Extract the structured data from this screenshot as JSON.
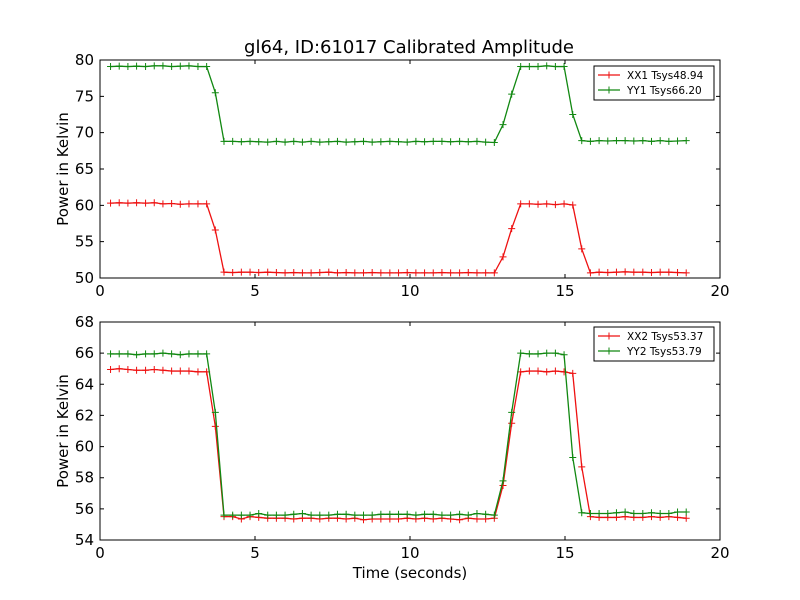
{
  "title": "gl64, ID:61017 Calibrated Amplitude",
  "colors": {
    "xx": "#ee1111",
    "yy": "#118811",
    "axes": "#000000",
    "background": "#ffffff"
  },
  "chart_data": [
    {
      "type": "line",
      "ylabel": "Power in Kelvin",
      "xlabel": "",
      "xlim": [
        0,
        20
      ],
      "ylim": [
        50,
        80
      ],
      "xticks": [
        0,
        5,
        10,
        15,
        20
      ],
      "yticks": [
        50,
        55,
        60,
        65,
        70,
        75,
        80
      ],
      "legend": "top-right",
      "grid": false,
      "series": [
        {
          "name": "XX1 Tsys48.94",
          "color": "#ee1111",
          "marker": "+",
          "x": [
            0.34,
            0.62,
            0.9,
            1.18,
            1.47,
            1.75,
            2.03,
            2.31,
            2.59,
            2.87,
            3.16,
            3.44,
            3.72,
            4,
            4.28,
            4.56,
            4.84,
            5.12,
            5.41,
            5.69,
            5.97,
            6.25,
            6.53,
            6.81,
            7.09,
            7.38,
            7.66,
            7.94,
            8.22,
            8.5,
            8.78,
            9.06,
            9.35,
            9.63,
            9.91,
            10.19,
            10.47,
            10.75,
            11.03,
            11.31,
            11.6,
            11.88,
            12.16,
            12.44,
            12.72,
            13,
            13.28,
            13.57,
            13.85,
            14.13,
            14.41,
            14.69,
            14.97,
            15.25,
            15.54,
            15.82,
            16.1,
            16.38,
            16.66,
            16.94,
            17.22,
            17.51,
            17.79,
            18.07,
            18.35,
            18.63,
            18.91
          ],
          "y": [
            60.3,
            60.35,
            60.3,
            60.35,
            60.3,
            60.35,
            60.2,
            60.25,
            60.15,
            60.2,
            60.2,
            60.2,
            56.6,
            50.8,
            50.75,
            50.8,
            50.8,
            50.75,
            50.8,
            50.75,
            50.7,
            50.75,
            50.7,
            50.7,
            50.75,
            50.8,
            50.7,
            50.75,
            50.7,
            50.7,
            50.75,
            50.7,
            50.7,
            50.7,
            50.75,
            50.7,
            50.7,
            50.7,
            50.75,
            50.7,
            50.7,
            50.75,
            50.7,
            50.7,
            50.7,
            52.9,
            56.8,
            60.2,
            60.2,
            60.15,
            60.2,
            60.1,
            60.2,
            60.05,
            54.0,
            50.7,
            50.8,
            50.75,
            50.8,
            50.85,
            50.8,
            50.8,
            50.75,
            50.8,
            50.8,
            50.75,
            50.7
          ]
        },
        {
          "name": "YY1 Tsys66.20",
          "color": "#118811",
          "marker": "+",
          "x": [
            0.34,
            0.62,
            0.9,
            1.18,
            1.47,
            1.75,
            2.03,
            2.31,
            2.59,
            2.87,
            3.16,
            3.44,
            3.72,
            4,
            4.28,
            4.56,
            4.84,
            5.12,
            5.41,
            5.69,
            5.97,
            6.25,
            6.53,
            6.81,
            7.09,
            7.38,
            7.66,
            7.94,
            8.22,
            8.5,
            8.78,
            9.06,
            9.35,
            9.63,
            9.91,
            10.19,
            10.47,
            10.75,
            11.03,
            11.31,
            11.6,
            11.88,
            12.16,
            12.44,
            12.72,
            13,
            13.28,
            13.57,
            13.85,
            14.13,
            14.41,
            14.69,
            14.97,
            15.25,
            15.54,
            15.82,
            16.1,
            16.38,
            16.66,
            16.94,
            17.22,
            17.51,
            17.79,
            18.07,
            18.35,
            18.63,
            18.91
          ],
          "y": [
            79.1,
            79.15,
            79.1,
            79.15,
            79.1,
            79.2,
            79.2,
            79.1,
            79.15,
            79.2,
            79.1,
            79.1,
            75.5,
            68.8,
            68.8,
            68.75,
            68.8,
            68.75,
            68.7,
            68.8,
            68.7,
            68.8,
            68.7,
            68.8,
            68.7,
            68.75,
            68.8,
            68.7,
            68.75,
            68.8,
            68.7,
            68.75,
            68.8,
            68.75,
            68.7,
            68.8,
            68.75,
            68.8,
            68.8,
            68.75,
            68.8,
            68.75,
            68.8,
            68.7,
            68.65,
            71.1,
            75.3,
            79.1,
            79.1,
            79.1,
            79.2,
            79.1,
            79.1,
            72.5,
            68.9,
            68.8,
            68.9,
            68.85,
            68.9,
            68.9,
            68.85,
            68.9,
            68.8,
            68.9,
            68.8,
            68.85,
            68.9
          ]
        }
      ]
    },
    {
      "type": "line",
      "ylabel": "Power in Kelvin",
      "xlabel": "Time (seconds)",
      "xlim": [
        0,
        20
      ],
      "ylim": [
        54,
        68
      ],
      "xticks": [
        0,
        5,
        10,
        15,
        20
      ],
      "yticks": [
        54,
        56,
        58,
        60,
        62,
        64,
        66,
        68
      ],
      "legend": "top-right",
      "grid": false,
      "series": [
        {
          "name": "XX2 Tsys53.37",
          "color": "#ee1111",
          "marker": "+",
          "x": [
            0.34,
            0.62,
            0.9,
            1.18,
            1.47,
            1.75,
            2.03,
            2.31,
            2.59,
            2.87,
            3.16,
            3.44,
            3.72,
            4,
            4.28,
            4.56,
            4.84,
            5.12,
            5.41,
            5.69,
            5.97,
            6.25,
            6.53,
            6.81,
            7.09,
            7.38,
            7.66,
            7.94,
            8.22,
            8.5,
            8.78,
            9.06,
            9.35,
            9.63,
            9.91,
            10.19,
            10.47,
            10.75,
            11.03,
            11.31,
            11.6,
            11.88,
            12.16,
            12.44,
            12.72,
            13,
            13.28,
            13.57,
            13.85,
            14.13,
            14.41,
            14.69,
            14.97,
            15.25,
            15.54,
            15.82,
            16.1,
            16.38,
            16.66,
            16.94,
            17.22,
            17.51,
            17.79,
            18.07,
            18.35,
            18.63,
            18.91
          ],
          "y": [
            64.95,
            65.0,
            64.95,
            64.9,
            64.9,
            64.95,
            64.9,
            64.85,
            64.85,
            64.85,
            64.8,
            64.8,
            61.3,
            55.5,
            55.5,
            55.35,
            55.5,
            55.45,
            55.4,
            55.4,
            55.4,
            55.35,
            55.4,
            55.4,
            55.35,
            55.4,
            55.4,
            55.35,
            55.4,
            55.3,
            55.35,
            55.35,
            55.35,
            55.35,
            55.4,
            55.35,
            55.4,
            55.35,
            55.4,
            55.35,
            55.3,
            55.4,
            55.35,
            55.35,
            55.4,
            57.5,
            61.5,
            64.8,
            64.85,
            64.85,
            64.8,
            64.85,
            64.8,
            64.7,
            58.7,
            55.5,
            55.45,
            55.45,
            55.45,
            55.5,
            55.45,
            55.45,
            55.5,
            55.45,
            55.5,
            55.45,
            55.4
          ]
        },
        {
          "name": "YY2 Tsys53.79",
          "color": "#118811",
          "marker": "+",
          "x": [
            0.34,
            0.62,
            0.9,
            1.18,
            1.47,
            1.75,
            2.03,
            2.31,
            2.59,
            2.87,
            3.16,
            3.44,
            3.72,
            4,
            4.28,
            4.56,
            4.84,
            5.12,
            5.41,
            5.69,
            5.97,
            6.25,
            6.53,
            6.81,
            7.09,
            7.38,
            7.66,
            7.94,
            8.22,
            8.5,
            8.78,
            9.06,
            9.35,
            9.63,
            9.91,
            10.19,
            10.47,
            10.75,
            11.03,
            11.31,
            11.6,
            11.88,
            12.16,
            12.44,
            12.72,
            13,
            13.28,
            13.57,
            13.85,
            14.13,
            14.41,
            14.69,
            14.97,
            15.25,
            15.54,
            15.82,
            16.1,
            16.38,
            16.66,
            16.94,
            17.22,
            17.51,
            17.79,
            18.07,
            18.35,
            18.63,
            18.91
          ],
          "y": [
            65.95,
            65.95,
            65.95,
            65.9,
            65.95,
            65.95,
            66.0,
            65.95,
            65.9,
            65.95,
            65.95,
            65.95,
            62.2,
            55.6,
            55.6,
            55.6,
            55.6,
            55.7,
            55.6,
            55.6,
            55.6,
            55.65,
            55.7,
            55.6,
            55.6,
            55.6,
            55.65,
            55.65,
            55.6,
            55.6,
            55.6,
            55.65,
            55.65,
            55.65,
            55.65,
            55.6,
            55.65,
            55.65,
            55.6,
            55.6,
            55.65,
            55.6,
            55.7,
            55.65,
            55.6,
            57.8,
            62.2,
            66.0,
            65.95,
            65.95,
            66.0,
            66.0,
            65.9,
            59.3,
            55.75,
            55.7,
            55.7,
            55.7,
            55.75,
            55.8,
            55.7,
            55.7,
            55.75,
            55.7,
            55.7,
            55.8,
            55.8
          ]
        }
      ]
    }
  ]
}
